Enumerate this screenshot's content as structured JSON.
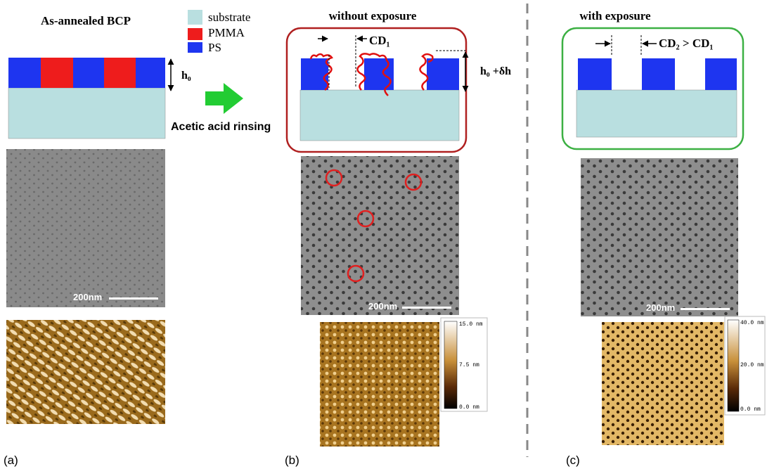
{
  "panel_a": {
    "title": "As-annealed BCP",
    "height_label": "h₀",
    "scale_bar": "200nm",
    "label": "(a)"
  },
  "legend": {
    "items": [
      "substrate",
      "PMMA",
      "PS"
    ]
  },
  "process": {
    "label": "Acetic acid rinsing"
  },
  "panel_b": {
    "title": "without exposure",
    "cd_label": "CD₁",
    "height_label": "h₀ +δh",
    "scale_bar": "200nm",
    "colorbar": [
      "15.0 nm",
      "7.5 nm",
      "0.0 nm"
    ],
    "label": "(b)"
  },
  "panel_c": {
    "title": "with exposure",
    "cd_label": "CD₂ > CD₁",
    "scale_bar": "200nm",
    "colorbar": [
      "40.0 nm",
      "20.0 nm",
      "0.0 nm"
    ],
    "label": "(c)"
  }
}
